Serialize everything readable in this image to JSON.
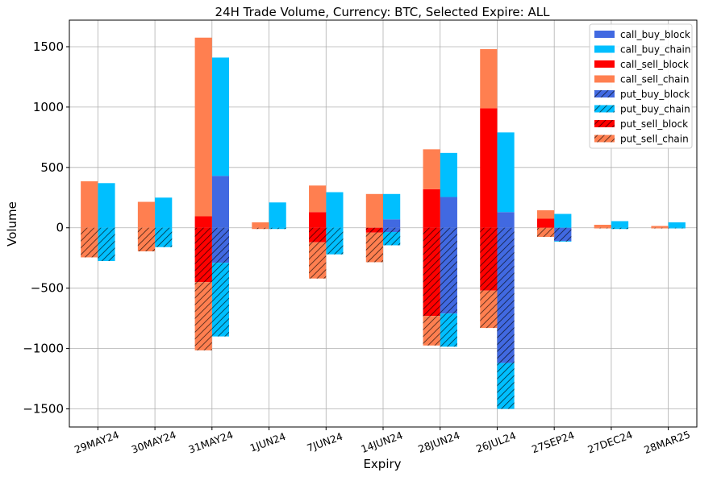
{
  "chart_data": {
    "type": "bar",
    "title": "24H Trade Volume, Currency: BTC, Selected Expire: ALL",
    "xlabel": "Expiry",
    "ylabel": "Volume",
    "ylim": [
      -1650,
      1720
    ],
    "yticks": [
      -1500,
      -1000,
      -500,
      0,
      500,
      1000,
      1500
    ],
    "ytick_labels": [
      "−1500",
      "−1000",
      "−500",
      "0",
      "500",
      "1000",
      "1500"
    ],
    "grid": true,
    "legend_position": "top-right",
    "categories": [
      "29MAY24",
      "30MAY24",
      "31MAY24",
      "1JUN24",
      "7JUN24",
      "14JUN24",
      "28JUN24",
      "26JUL24",
      "27SEP24",
      "27DEC24",
      "28MAR25"
    ],
    "series": [
      {
        "name": "call_buy_block",
        "color": "#4169e1",
        "hatch": false,
        "bar": "buy",
        "values": [
          0,
          0,
          430,
          0,
          0,
          70,
          255,
          130,
          0,
          0,
          0
        ]
      },
      {
        "name": "call_buy_chain",
        "color": "#00bfff",
        "hatch": false,
        "bar": "buy",
        "values": [
          370,
          250,
          980,
          210,
          295,
          210,
          365,
          660,
          115,
          55,
          45
        ]
      },
      {
        "name": "call_sell_block",
        "color": "#ff0000",
        "hatch": false,
        "bar": "sell",
        "values": [
          0,
          0,
          95,
          0,
          130,
          0,
          320,
          990,
          75,
          0,
          0
        ]
      },
      {
        "name": "call_sell_chain",
        "color": "#ff7f50",
        "hatch": false,
        "bar": "sell",
        "values": [
          385,
          215,
          1480,
          45,
          220,
          280,
          330,
          490,
          70,
          25,
          15
        ]
      },
      {
        "name": "put_buy_block",
        "color": "#4169e1",
        "hatch": true,
        "bar": "buy",
        "values": [
          0,
          0,
          -290,
          0,
          0,
          -35,
          -710,
          -1120,
          -110,
          0,
          0
        ]
      },
      {
        "name": "put_buy_chain",
        "color": "#00bfff",
        "hatch": true,
        "bar": "buy",
        "values": [
          -275,
          -160,
          -610,
          -10,
          -220,
          -110,
          -275,
          -380,
          -5,
          -10,
          -5
        ]
      },
      {
        "name": "put_sell_block",
        "color": "#ff0000",
        "hatch": true,
        "bar": "sell",
        "values": [
          0,
          0,
          -450,
          0,
          -120,
          -40,
          -730,
          -520,
          0,
          0,
          0
        ]
      },
      {
        "name": "put_sell_chain",
        "color": "#ff7f50",
        "hatch": true,
        "bar": "sell",
        "values": [
          -245,
          -195,
          -565,
          -10,
          -300,
          -245,
          -245,
          -310,
          -75,
          -5,
          -5
        ]
      }
    ]
  }
}
